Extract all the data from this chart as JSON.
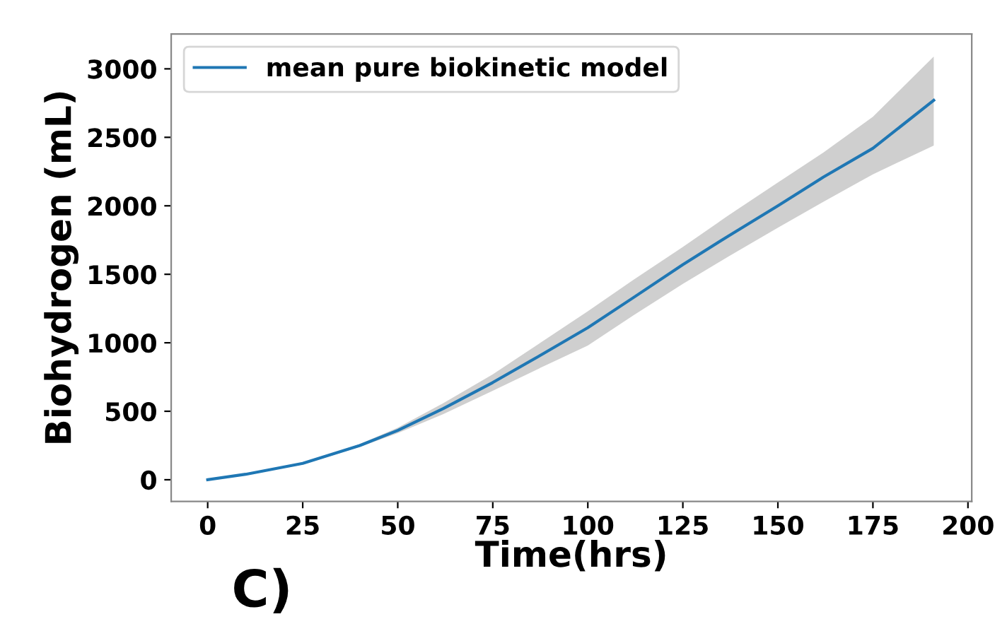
{
  "chart_data": {
    "type": "line",
    "xlabel": "Time(hrs)",
    "ylabel": "Biohydrogen (mL)",
    "x": [
      0,
      10,
      25,
      40,
      50,
      62,
      75,
      87,
      100,
      112,
      125,
      137,
      150,
      162,
      175,
      191
    ],
    "series": [
      {
        "name": "mean pure biokinetic model",
        "color": "#1f77b4",
        "values": [
          0,
          40,
          120,
          250,
          360,
          520,
          710,
          900,
          1110,
          1330,
          1570,
          1780,
          2000,
          2210,
          2420,
          2770
        ],
        "lower": [
          0,
          40,
          110,
          240,
          340,
          480,
          650,
          810,
          980,
          1200,
          1430,
          1630,
          1840,
          2030,
          2230,
          2440
        ],
        "upper": [
          0,
          40,
          120,
          260,
          380,
          560,
          770,
          990,
          1230,
          1460,
          1700,
          1930,
          2170,
          2390,
          2650,
          3090
        ]
      }
    ],
    "xlim": [
      -9.6,
      201
    ],
    "ylim": [
      -158,
      3254
    ],
    "xticks": [
      0,
      25,
      50,
      75,
      100,
      125,
      150,
      175,
      200
    ],
    "yticks": [
      0,
      500,
      1000,
      1500,
      2000,
      2500,
      3000
    ],
    "grid": false,
    "legend": "top left",
    "annotations": [
      "C)"
    ]
  }
}
